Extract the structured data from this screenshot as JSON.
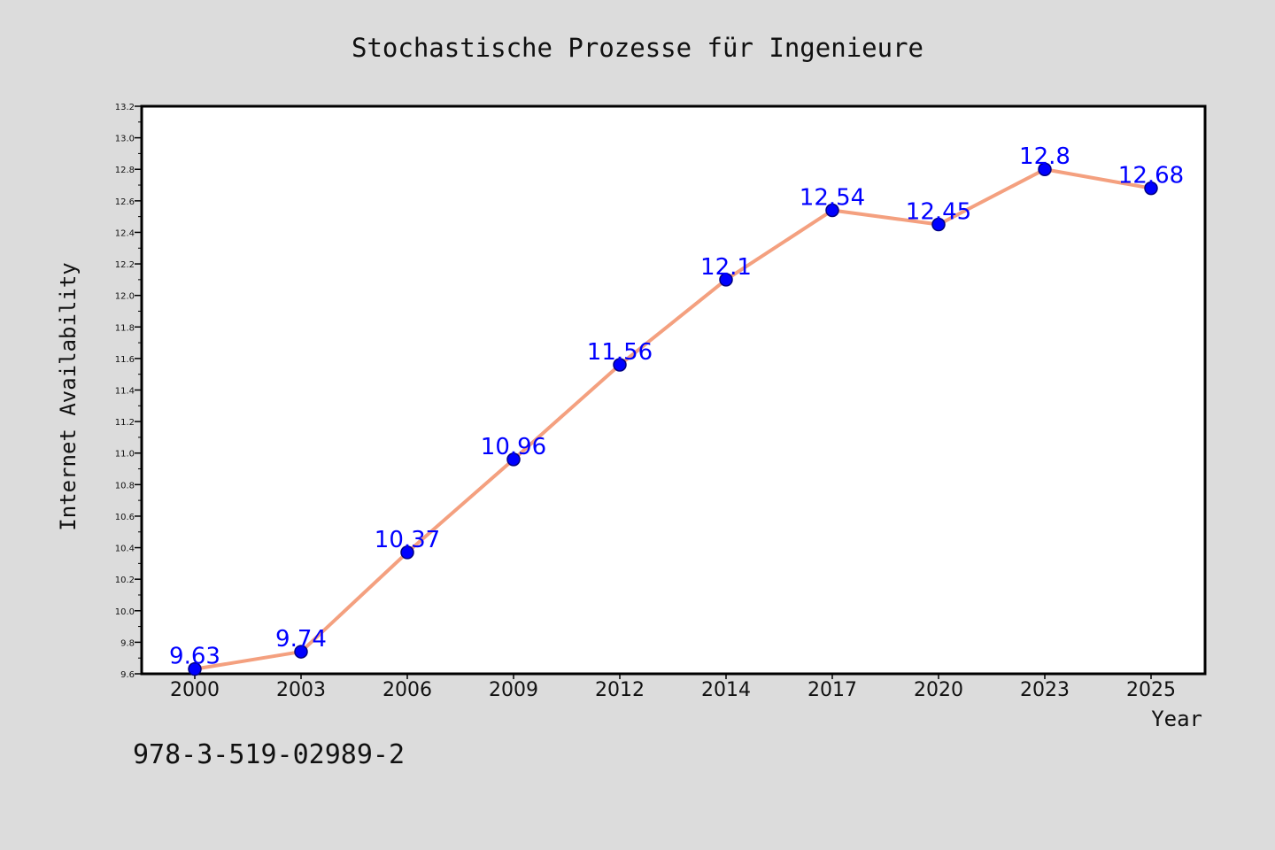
{
  "chart_data": {
    "type": "line",
    "title": "Stochastische Prozesse für Ingenieure",
    "xlabel": "Year",
    "ylabel": "Internet Availability",
    "categories": [
      "2000",
      "2003",
      "2006",
      "2009",
      "2012",
      "2014",
      "2017",
      "2020",
      "2023",
      "2025"
    ],
    "series": [
      {
        "values": [
          9.63,
          9.74,
          10.37,
          10.96,
          11.56,
          12.1,
          12.54,
          12.45,
          12.8,
          12.68
        ],
        "labels": [
          "9.63",
          "9.74",
          "10.37",
          "10.96",
          "11.56",
          "12.1",
          "12.54",
          "12.45",
          "12.8",
          "12.68"
        ]
      }
    ],
    "ylim": [
      9.6,
      13.2
    ],
    "yticks": [
      "9.6",
      "9.8",
      "10.0",
      "10.2",
      "10.4",
      "10.6",
      "10.8",
      "11.0",
      "11.2",
      "11.4",
      "11.6",
      "11.8",
      "12.0",
      "12.2",
      "12.4",
      "12.6",
      "12.8",
      "13.0",
      "13.2"
    ],
    "grid": false,
    "colors": {
      "line": "#f4a07f",
      "marker": "#0000ff",
      "marker_edge": "#000080",
      "data_label": "#0000ff",
      "background": "#dcdcdc",
      "plot_area": "#ffffff"
    }
  },
  "footer": {
    "isbn": "978-3-519-02989-2"
  }
}
